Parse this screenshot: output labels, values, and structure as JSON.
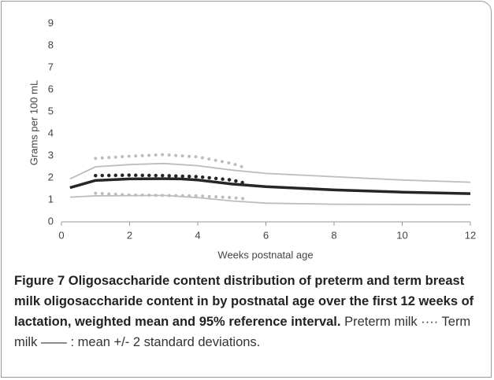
{
  "chart_data": {
    "type": "line",
    "xlabel": "Weeks postnatal age",
    "ylabel": "Grams per 100 mL",
    "xlim": [
      0,
      12
    ],
    "xticks": [
      0,
      2,
      4,
      6,
      8,
      10,
      12
    ],
    "ylim": [
      0,
      9
    ],
    "yticks": [
      0,
      1,
      2,
      3,
      4,
      5,
      6,
      7,
      8,
      9
    ],
    "grid": false,
    "series": [
      {
        "color": "#bdbdbd",
        "style": "solid",
        "width": 1.8,
        "x": [
          0.25,
          1,
          2,
          3,
          4,
          5,
          6,
          8,
          10,
          12
        ],
        "values": [
          1.95,
          2.5,
          2.6,
          2.65,
          2.55,
          2.35,
          2.2,
          2.05,
          1.9,
          1.8
        ]
      },
      {
        "color": "#bdbdbd",
        "style": "solid",
        "width": 1.8,
        "x": [
          0.25,
          1,
          3,
          4,
          5,
          6,
          8,
          12
        ],
        "values": [
          1.12,
          1.18,
          1.2,
          1.1,
          0.95,
          0.85,
          0.8,
          0.78
        ]
      },
      {
        "color": "#262626",
        "style": "solid",
        "width": 3.5,
        "x": [
          0.25,
          1,
          2,
          3,
          3.5,
          4,
          5,
          6,
          8,
          10,
          12
        ],
        "values": [
          1.55,
          1.88,
          1.95,
          1.96,
          1.95,
          1.9,
          1.72,
          1.6,
          1.45,
          1.35,
          1.28
        ]
      },
      {
        "color": "#bdbdbd",
        "style": "dotted",
        "width": 4,
        "x": [
          1,
          2,
          3,
          4,
          5,
          5.4
        ],
        "values": [
          2.88,
          2.98,
          3.05,
          2.95,
          2.65,
          2.45
        ]
      },
      {
        "color": "#262626",
        "style": "dotted",
        "width": 4.5,
        "x": [
          1,
          2,
          3,
          4,
          5,
          5.4
        ],
        "values": [
          2.1,
          2.12,
          2.1,
          2.05,
          1.9,
          1.75
        ]
      },
      {
        "color": "#bdbdbd",
        "style": "dotted",
        "width": 4,
        "x": [
          1,
          2,
          3,
          4,
          5,
          5.4
        ],
        "values": [
          1.3,
          1.22,
          1.2,
          1.18,
          1.1,
          1.05
        ]
      }
    ]
  },
  "caption": {
    "bold": "Figure 7 Oligosaccharide content distribution of preterm and term breast milk oligosaccharide content in by postnatal age over the first 12 weeks of lactation, weighted mean and 95% reference interval.",
    "text": "Preterm milk ···· Term milk —— : mean +/- 2 standard deviations."
  }
}
